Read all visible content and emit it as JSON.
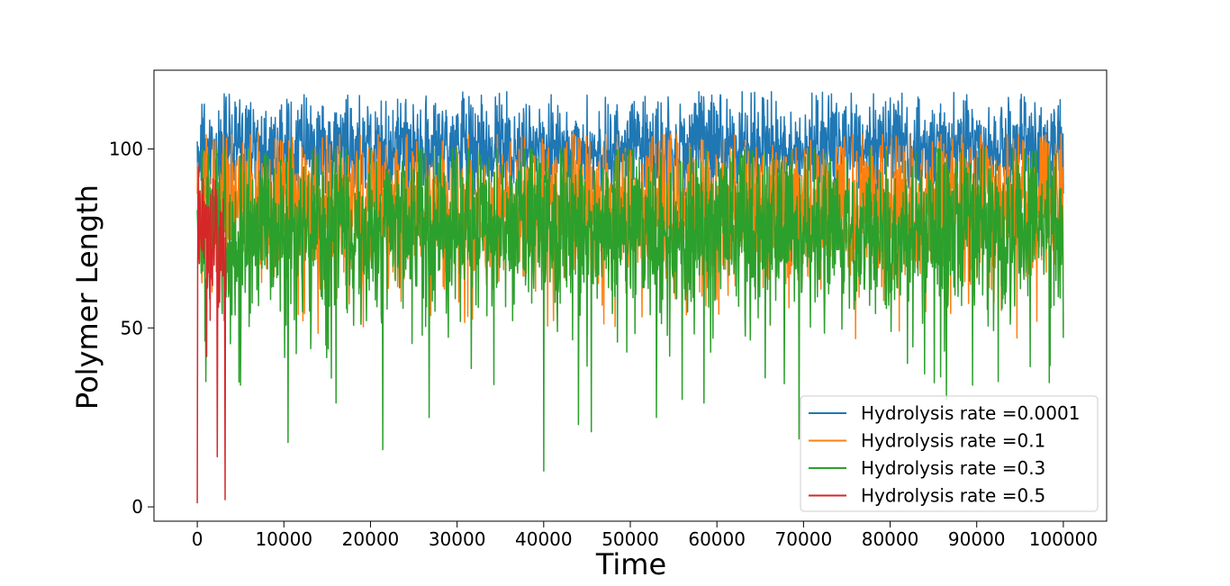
{
  "chart_data": {
    "type": "line",
    "title": "",
    "xlabel": "Time",
    "ylabel": "Polymer Length",
    "xlim": [
      -5000,
      105000
    ],
    "ylim": [
      -4,
      122
    ],
    "xticks": [
      0,
      10000,
      20000,
      30000,
      40000,
      50000,
      60000,
      70000,
      80000,
      90000,
      100000
    ],
    "xtick_labels": [
      "0",
      "10000",
      "20000",
      "30000",
      "40000",
      "50000",
      "60000",
      "70000",
      "80000",
      "90000",
      "100000"
    ],
    "yticks": [
      0,
      50,
      100
    ],
    "ytick_labels": [
      "0",
      "50",
      "100"
    ],
    "grid": false,
    "legend_position": "lower-right",
    "series": [
      {
        "name": "Hydrolysis rate =0.0001",
        "color": "#1f77b4",
        "x_range": [
          0,
          100000
        ],
        "mean": 100,
        "low": 87,
        "high": 116,
        "spikes": [
          [
            3300,
            113
          ],
          [
            6500,
            111
          ],
          [
            32800,
            115
          ],
          [
            45000,
            115
          ],
          [
            57900,
            116
          ],
          [
            61500,
            111
          ],
          [
            93700,
            112
          ],
          [
            98900,
            111
          ]
        ]
      },
      {
        "name": "Hydrolysis rate =0.1",
        "color": "#ff7f0e",
        "x_range": [
          0,
          100000
        ],
        "mean": 83,
        "low": 47,
        "high": 104,
        "spikes": [
          [
            7000,
            105
          ],
          [
            54000,
            104
          ],
          [
            76000,
            47
          ],
          [
            93500,
            104
          ]
        ]
      },
      {
        "name": "Hydrolysis rate =0.3",
        "color": "#2ca02c",
        "x_range": [
          0,
          100000
        ],
        "mean": 77,
        "low": 34,
        "high": 100,
        "spikes": [
          [
            1000,
            35
          ],
          [
            5000,
            34
          ],
          [
            10500,
            18
          ],
          [
            16000,
            29
          ],
          [
            21400,
            16
          ],
          [
            26800,
            25
          ],
          [
            40000,
            10
          ],
          [
            44000,
            23
          ],
          [
            45500,
            21
          ],
          [
            53000,
            25
          ],
          [
            56000,
            30
          ],
          [
            58500,
            29
          ],
          [
            69500,
            19
          ],
          [
            86500,
            30
          ],
          [
            89500,
            34
          ],
          [
            92500,
            35
          ]
        ]
      },
      {
        "name": "Hydrolysis rate =0.5",
        "color": "#d62728",
        "x_range": [
          0,
          3300
        ],
        "mean": 75,
        "low": 42,
        "high": 95,
        "spikes": [
          [
            0,
            1
          ],
          [
            2300,
            14
          ],
          [
            3200,
            2
          ],
          [
            1100,
            42
          ]
        ]
      }
    ]
  }
}
